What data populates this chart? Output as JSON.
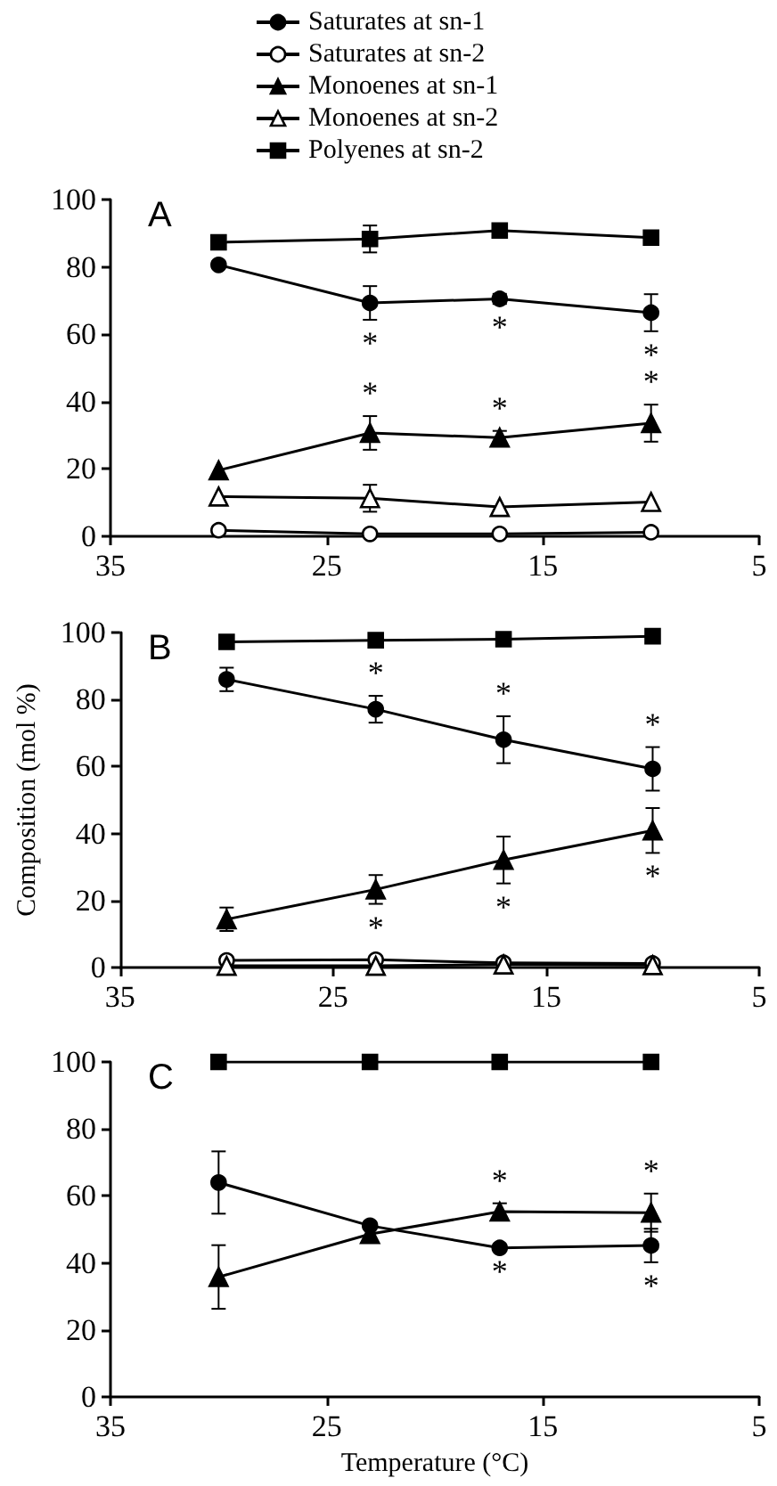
{
  "chart_data": [
    {
      "type": "line",
      "title": "A",
      "x": [
        30,
        23,
        17,
        10
      ],
      "xlim": [
        35,
        5
      ],
      "xticks": [
        35,
        25,
        15,
        5
      ],
      "ylim": [
        0,
        100
      ],
      "yticks": [
        0,
        20,
        40,
        60,
        80,
        100
      ],
      "grid": false,
      "legend": "top",
      "line_style": "solid",
      "series": [
        {
          "name": "Saturates at sn-1",
          "color": "#000000",
          "marker": "circle",
          "values": [
            80.6,
            69.3,
            70.5,
            66.4
          ],
          "errors": [
            null,
            5,
            1.5,
            5.5
          ],
          "value_labels": [
            null,
            "*",
            "*",
            "*"
          ]
        },
        {
          "name": "Saturates at sn-2",
          "color": "#000000",
          "colors": [
            "#ffffff",
            "#ffffff",
            "#ffffff",
            "#ffffff"
          ],
          "marker": "circle",
          "values": [
            1.8,
            0.7,
            0.7,
            1.2
          ]
        },
        {
          "name": "Monoenes at sn-1",
          "color": "#000000",
          "marker": "triangle",
          "values": [
            19.6,
            30.7,
            29.3,
            33.6
          ],
          "errors": [
            null,
            5,
            2,
            5.5
          ],
          "value_labels": [
            null,
            "*",
            "*",
            "*"
          ]
        },
        {
          "name": "Monoenes at sn-2",
          "color": "#000000",
          "colors": [
            "#ffffff",
            "#ffffff",
            "#ffffff",
            "#ffffff"
          ],
          "marker": "triangle",
          "values": [
            11.8,
            11.3,
            8.7,
            10.2
          ],
          "errors": [
            null,
            4,
            null,
            null
          ]
        },
        {
          "name": "Polyenes at sn-2",
          "color": "#000000",
          "marker": "square",
          "values": [
            87.3,
            88.3,
            90.8,
            88.7
          ],
          "errors": [
            null,
            4,
            1,
            null
          ]
        }
      ]
    },
    {
      "type": "line",
      "title": "B",
      "ylabel": "Composition (mol %)",
      "x": [
        30,
        23,
        17,
        10
      ],
      "xlim": [
        35,
        5
      ],
      "xticks": [
        35,
        25,
        15,
        5
      ],
      "ylim": [
        0,
        100
      ],
      "yticks": [
        0,
        20,
        40,
        60,
        80,
        100
      ],
      "grid": false,
      "legend": false,
      "line_style": "solid",
      "series": [
        {
          "color": "#000000",
          "marker": "circle",
          "values": [
            86,
            77.1,
            68,
            59.3
          ],
          "errors": [
            3.5,
            4,
            7,
            6.5
          ],
          "value_labels": [
            null,
            "*",
            "*",
            "*"
          ]
        },
        {
          "color": "#000000",
          "colors": [
            "#ffffff",
            "#ffffff",
            "#ffffff",
            "#ffffff"
          ],
          "marker": "circle",
          "values": [
            2.1,
            2.3,
            1.4,
            1.2
          ]
        },
        {
          "color": "#000000",
          "marker": "triangle",
          "values": [
            14.4,
            23.3,
            32.1,
            40.9
          ],
          "errors": [
            3.5,
            4.3,
            7,
            6.7
          ],
          "value_labels": [
            null,
            "*",
            "*",
            "*"
          ]
        },
        {
          "color": "#000000",
          "colors": [
            "#ffffff",
            "#ffffff",
            "#ffffff",
            "#ffffff"
          ],
          "marker": "triangle",
          "values": [
            0.5,
            0.5,
            0.9,
            0.7
          ]
        },
        {
          "color": "#000000",
          "marker": "square",
          "values": [
            97.2,
            97.7,
            98,
            98.9
          ]
        }
      ]
    },
    {
      "type": "line",
      "title": "C",
      "xlabel": "Temperature (°C)",
      "x": [
        30,
        23,
        17,
        10
      ],
      "xlim": [
        35,
        5
      ],
      "xticks": [
        35,
        25,
        15,
        5
      ],
      "ylim": [
        0,
        100
      ],
      "yticks": [
        0,
        20,
        40,
        60,
        80,
        100
      ],
      "grid": false,
      "legend": false,
      "line_style": "solid",
      "series": [
        {
          "color": "#000000",
          "marker": "circle",
          "values": [
            64,
            51.1,
            44.5,
            45.2
          ],
          "errors": [
            9.3,
            null,
            null,
            5
          ],
          "value_labels": [
            null,
            null,
            "*",
            "*"
          ]
        },
        {
          "color": "#000000",
          "marker": "triangle",
          "values": [
            35.8,
            48.6,
            55.3,
            55
          ],
          "errors": [
            9.5,
            null,
            2.5,
            5.7
          ],
          "value_labels": [
            null,
            null,
            "*",
            "*"
          ]
        },
        {
          "color": "#000000",
          "marker": "square",
          "values": [
            100,
            100,
            100,
            100
          ]
        }
      ]
    }
  ]
}
